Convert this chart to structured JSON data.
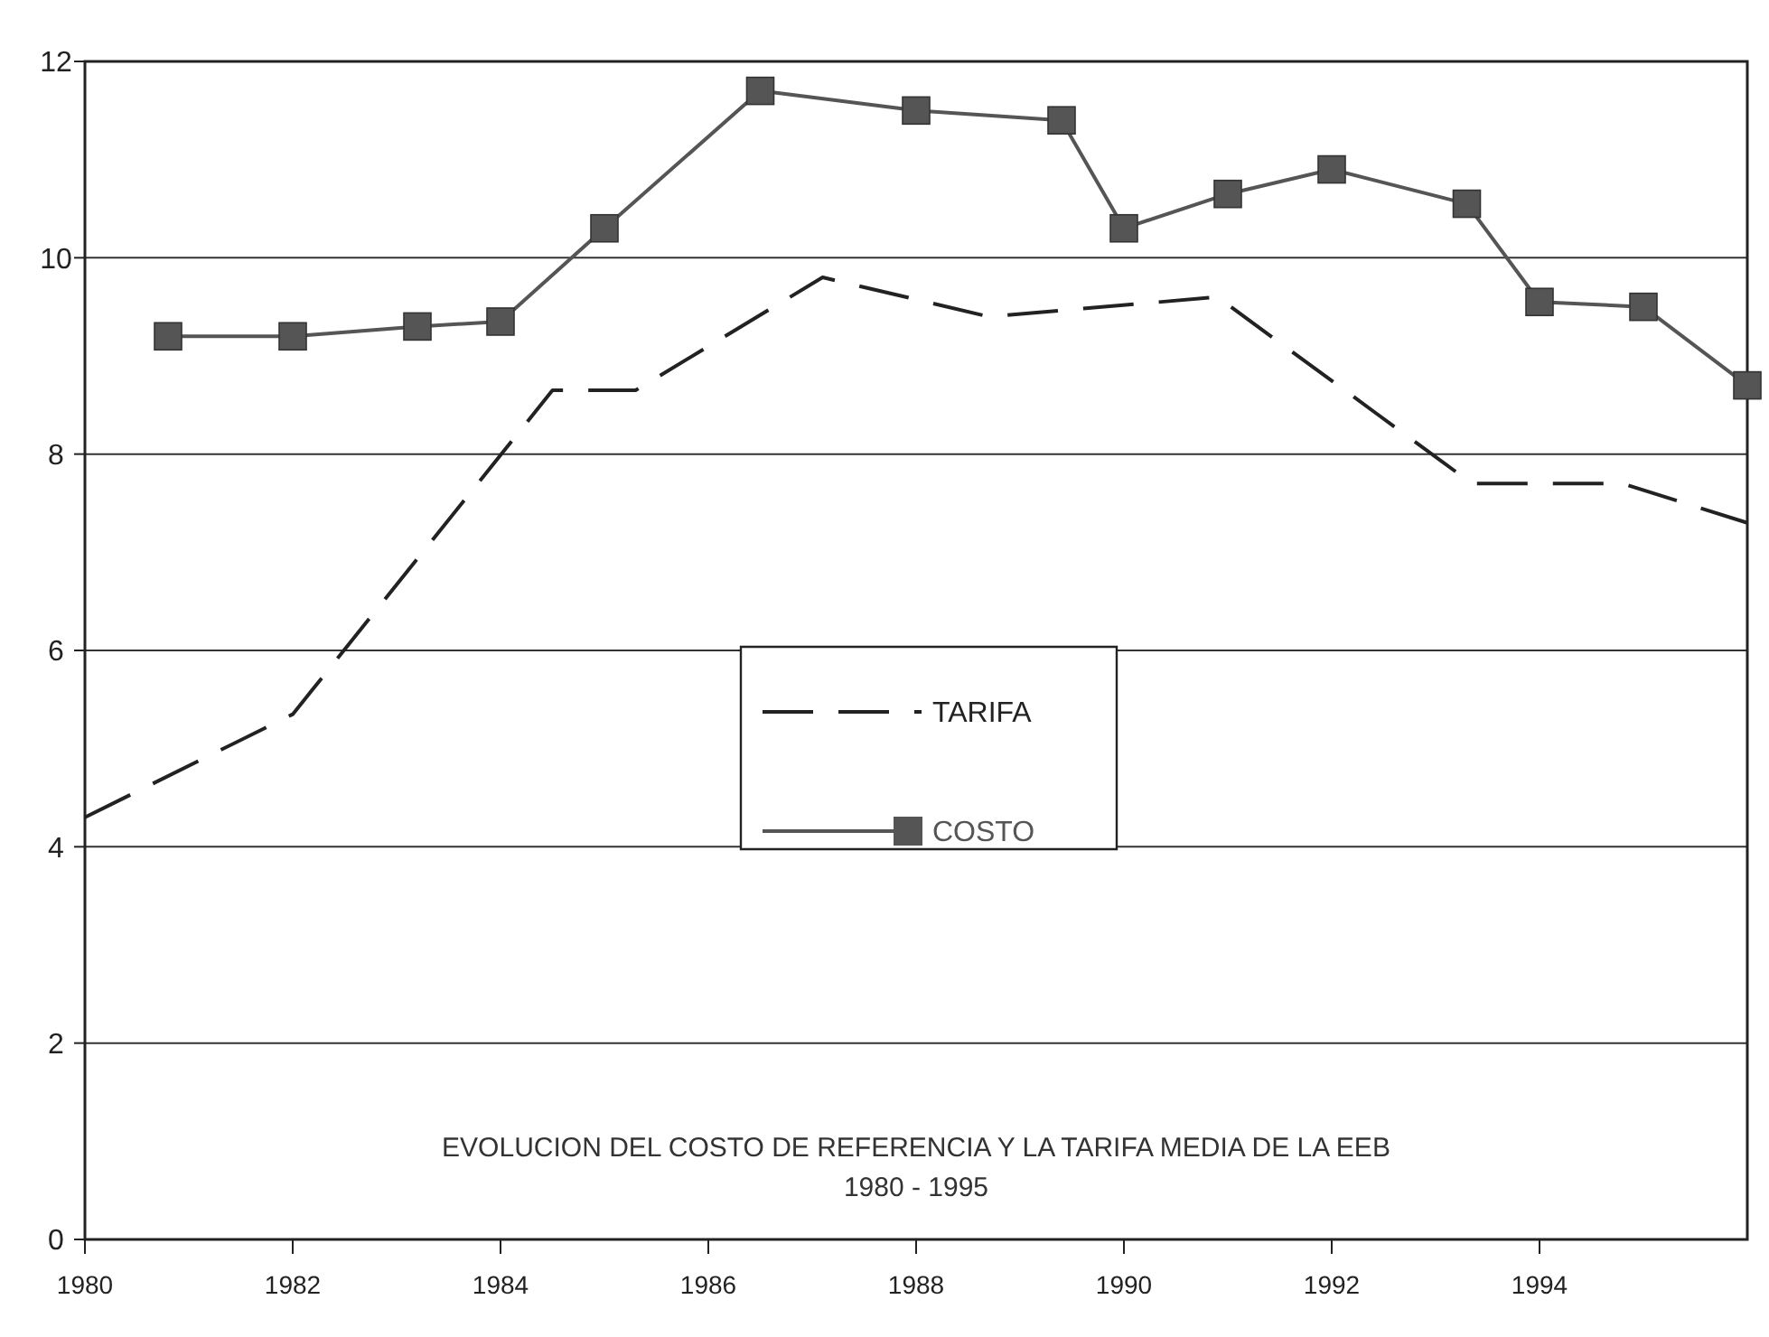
{
  "chart_data": {
    "type": "line",
    "title": "EVOLUCION DEL COSTO DE REFERENCIA Y LA TARIFA MEDIA DE LA EEB",
    "subtitle": "1980 - 1995",
    "xlim": [
      1980,
      1996
    ],
    "xticks": [
      1980,
      1982,
      1984,
      1986,
      1988,
      1990,
      1992,
      1994
    ],
    "ylim": [
      0,
      12
    ],
    "yticks": [
      0,
      2,
      4,
      6,
      8,
      10,
      12
    ],
    "grid": "y",
    "legend": "center",
    "series": [
      {
        "name": "TARIFA",
        "color": "#222222",
        "line_style": "dashed",
        "marker": "none",
        "x": [
          1980,
          1982,
          1984.5,
          1985.3,
          1987.1,
          1988.7,
          1990.9,
          1993.35,
          1994.8,
          1996
        ],
        "values": [
          4.3,
          5.35,
          8.65,
          8.65,
          9.8,
          9.4,
          9.6,
          7.7,
          7.7,
          7.3
        ]
      },
      {
        "name": "COSTO",
        "color": "#555555",
        "line_style": "solid",
        "marker": "square",
        "x": [
          1980.8,
          1982,
          1983.2,
          1984,
          1985,
          1986.5,
          1988,
          1989.4,
          1990,
          1991,
          1992,
          1993.3,
          1994,
          1995,
          1996
        ],
        "values": [
          9.2,
          9.2,
          9.3,
          9.35,
          10.3,
          11.7,
          11.5,
          11.4,
          10.3,
          10.65,
          10.9,
          10.55,
          9.55,
          9.5,
          8.7
        ]
      }
    ]
  }
}
